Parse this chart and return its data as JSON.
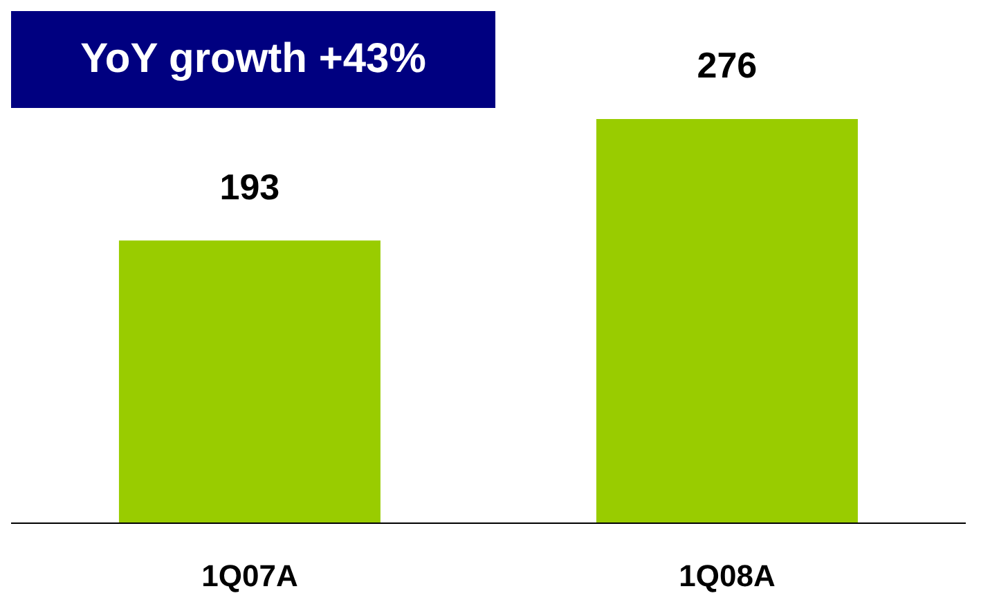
{
  "chart_data": {
    "type": "bar",
    "categories": [
      "1Q07A",
      "1Q08A"
    ],
    "values": [
      193,
      276
    ],
    "color": "#99cc00",
    "data_labels": true,
    "annotations": [
      "YoY growth +43%"
    ]
  }
}
